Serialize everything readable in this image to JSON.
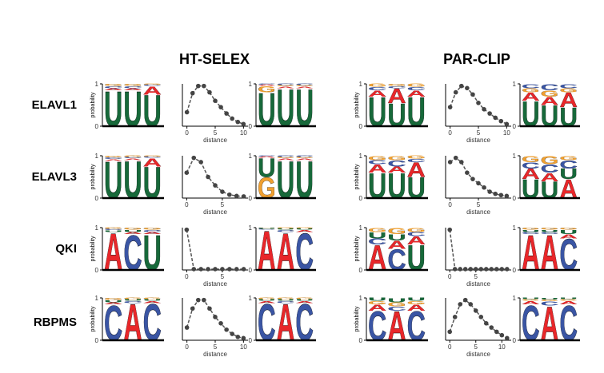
{
  "titles": [
    "HT-SELEX",
    "PAR-CLIP"
  ],
  "row_labels": [
    "ELAVL1",
    "ELAVL3",
    "QKI",
    "RBPMS"
  ],
  "chart_data": [
    {
      "type": "logo",
      "ylabel": "probability",
      "ylim": [
        0,
        1
      ],
      "yticks": [
        0,
        1
      ],
      "series": [
        {
          "name": "U",
          "color": "#17693a",
          "values": [
            0.85,
            0.85,
            0.75
          ]
        },
        {
          "name": "A",
          "color": "#e8272a",
          "values": [
            0.05,
            0.05,
            0.2
          ]
        },
        {
          "name": "C",
          "color": "#3a55a4",
          "values": [
            0.05,
            0.05,
            0.03
          ]
        },
        {
          "name": "G",
          "color": "#f0a030",
          "values": [
            0.05,
            0.05,
            0.02
          ]
        }
      ]
    },
    {
      "type": "line",
      "xlabel": "distance",
      "x": [
        0,
        1,
        2,
        3,
        4,
        5,
        6,
        7,
        8,
        9,
        10
      ],
      "values": [
        0.33,
        0.78,
        0.95,
        0.95,
        0.8,
        0.6,
        0.45,
        0.3,
        0.18,
        0.1,
        0.05
      ],
      "xlim": [
        -0.8,
        10.8
      ],
      "xticks": [
        0,
        5,
        10
      ],
      "ylim": [
        0,
        1
      ]
    },
    {
      "type": "logo",
      "ylim": [
        0,
        1
      ],
      "yticks": [
        0,
        1
      ],
      "series": [
        {
          "name": "U",
          "color": "#17693a",
          "values": [
            0.8,
            0.9,
            0.9
          ]
        },
        {
          "name": "G",
          "color": "#f0a030",
          "values": [
            0.15,
            0.03,
            0.03
          ]
        },
        {
          "name": "A",
          "color": "#e8272a",
          "values": [
            0.03,
            0.04,
            0.04
          ]
        },
        {
          "name": "C",
          "color": "#3a55a4",
          "values": [
            0.02,
            0.03,
            0.03
          ]
        }
      ]
    },
    {
      "type": "logo",
      "ylabel": "probability",
      "ylim": [
        0,
        1
      ],
      "yticks": [
        0,
        1
      ],
      "series": [
        {
          "name": "U",
          "color": "#17693a",
          "values": [
            0.7,
            0.55,
            0.7
          ]
        },
        {
          "name": "A",
          "color": "#e8272a",
          "values": [
            0.15,
            0.35,
            0.15
          ]
        },
        {
          "name": "C",
          "color": "#3a55a4",
          "values": [
            0.08,
            0.05,
            0.08
          ]
        },
        {
          "name": "G",
          "color": "#f0a030",
          "values": [
            0.07,
            0.05,
            0.07
          ]
        }
      ]
    },
    {
      "type": "line",
      "xlabel": "distance",
      "x": [
        0,
        1,
        2,
        3,
        4,
        5,
        6,
        7,
        8,
        9,
        10
      ],
      "values": [
        0.45,
        0.8,
        0.95,
        0.9,
        0.75,
        0.55,
        0.4,
        0.3,
        0.2,
        0.12,
        0.05
      ],
      "xlim": [
        -0.8,
        10.8
      ],
      "xticks": [
        0,
        5,
        10
      ],
      "ylim": [
        0,
        1
      ]
    },
    {
      "type": "logo",
      "ylim": [
        0,
        1
      ],
      "yticks": [
        0,
        1
      ],
      "series": [
        {
          "name": "U",
          "color": "#17693a",
          "values": [
            0.6,
            0.5,
            0.45
          ]
        },
        {
          "name": "A",
          "color": "#e8272a",
          "values": [
            0.2,
            0.2,
            0.35
          ]
        },
        {
          "name": "G",
          "color": "#f0a030",
          "values": [
            0.1,
            0.15,
            0.1
          ]
        },
        {
          "name": "C",
          "color": "#3a55a4",
          "values": [
            0.1,
            0.15,
            0.1
          ]
        }
      ]
    },
    {
      "type": "logo",
      "ylabel": "probability",
      "ylim": [
        0,
        1
      ],
      "yticks": [
        0,
        1
      ],
      "series": [
        {
          "name": "U",
          "color": "#17693a",
          "values": [
            0.88,
            0.9,
            0.75
          ]
        },
        {
          "name": "A",
          "color": "#e8272a",
          "values": [
            0.04,
            0.04,
            0.2
          ]
        },
        {
          "name": "C",
          "color": "#3a55a4",
          "values": [
            0.04,
            0.03,
            0.03
          ]
        },
        {
          "name": "G",
          "color": "#f0a030",
          "values": [
            0.04,
            0.03,
            0.02
          ]
        }
      ]
    },
    {
      "type": "line",
      "xlabel": "distance",
      "x": [
        0,
        1,
        2,
        3,
        4,
        5,
        6,
        7,
        8
      ],
      "values": [
        0.6,
        0.95,
        0.85,
        0.5,
        0.3,
        0.15,
        0.08,
        0.05,
        0.04
      ],
      "xlim": [
        -0.6,
        8.6
      ],
      "xticks": [
        0,
        5
      ],
      "ylim": [
        0,
        1
      ]
    },
    {
      "type": "logo",
      "ylim": [
        0,
        1
      ],
      "yticks": [
        0,
        1
      ],
      "series": [
        {
          "name": "G",
          "color": "#f0a030",
          "values": [
            0.5,
            0.03,
            0.03
          ]
        },
        {
          "name": "U",
          "color": "#17693a",
          "values": [
            0.45,
            0.9,
            0.9
          ]
        },
        {
          "name": "A",
          "color": "#e8272a",
          "values": [
            0.03,
            0.04,
            0.04
          ]
        },
        {
          "name": "C",
          "color": "#3a55a4",
          "values": [
            0.02,
            0.03,
            0.03
          ]
        }
      ]
    },
    {
      "type": "logo",
      "ylabel": "probability",
      "ylim": [
        0,
        1
      ],
      "yticks": [
        0,
        1
      ],
      "series": [
        {
          "name": "U",
          "color": "#17693a",
          "values": [
            0.6,
            0.6,
            0.5
          ]
        },
        {
          "name": "A",
          "color": "#e8272a",
          "values": [
            0.2,
            0.15,
            0.35
          ]
        },
        {
          "name": "C",
          "color": "#3a55a4",
          "values": [
            0.1,
            0.15,
            0.08
          ]
        },
        {
          "name": "G",
          "color": "#f0a030",
          "values": [
            0.1,
            0.1,
            0.07
          ]
        }
      ]
    },
    {
      "type": "line",
      "xlabel": "distance",
      "x": [
        0,
        1,
        2,
        3,
        4,
        5,
        6,
        7,
        8,
        9,
        10
      ],
      "values": [
        0.85,
        0.95,
        0.85,
        0.6,
        0.45,
        0.35,
        0.25,
        0.15,
        0.1,
        0.07,
        0.05
      ],
      "xlim": [
        -0.8,
        10.8
      ],
      "xticks": [
        0,
        5
      ],
      "ylim": [
        0,
        1
      ]
    },
    {
      "type": "logo",
      "ylim": [
        0,
        1
      ],
      "yticks": [
        0,
        1
      ],
      "series": [
        {
          "name": "U",
          "color": "#17693a",
          "values": [
            0.45,
            0.4,
            0.25
          ]
        },
        {
          "name": "A",
          "color": "#e8272a",
          "values": [
            0.25,
            0.2,
            0.45
          ]
        },
        {
          "name": "C",
          "color": "#3a55a4",
          "values": [
            0.15,
            0.2,
            0.2
          ]
        },
        {
          "name": "G",
          "color": "#f0a030",
          "values": [
            0.15,
            0.2,
            0.1
          ]
        }
      ]
    },
    {
      "type": "logo",
      "ylabel": "probability",
      "ylim": [
        0,
        1
      ],
      "yticks": [
        0,
        1
      ],
      "series": [
        {
          "name": "A",
          "color": "#e8272a",
          "values": [
            0.9,
            0.05,
            0.05
          ]
        },
        {
          "name": "C",
          "color": "#3a55a4",
          "values": [
            0.03,
            0.85,
            0.05
          ]
        },
        {
          "name": "U",
          "color": "#17693a",
          "values": [
            0.04,
            0.05,
            0.85
          ]
        },
        {
          "name": "G",
          "color": "#f0a030",
          "values": [
            0.03,
            0.05,
            0.05
          ]
        }
      ]
    },
    {
      "type": "line",
      "xlabel": "distance",
      "x": [
        0,
        1,
        2,
        3,
        4,
        5,
        6,
        7,
        8
      ],
      "values": [
        0.95,
        0.02,
        0.02,
        0.02,
        0.02,
        0.02,
        0.02,
        0.02,
        0.02
      ],
      "xlim": [
        -0.6,
        8.6
      ],
      "xticks": [
        0,
        5
      ],
      "ylim": [
        0,
        1
      ]
    },
    {
      "type": "logo",
      "ylim": [
        0,
        1
      ],
      "yticks": [
        0,
        1
      ],
      "series": [
        {
          "name": "A",
          "color": "#e8272a",
          "values": [
            0.95,
            0.9,
            0.05
          ]
        },
        {
          "name": "C",
          "color": "#3a55a4",
          "values": [
            0.02,
            0.05,
            0.9
          ]
        },
        {
          "name": "U",
          "color": "#17693a",
          "values": [
            0.02,
            0.03,
            0.03
          ]
        },
        {
          "name": "G",
          "color": "#f0a030",
          "values": [
            0.01,
            0.02,
            0.02
          ]
        }
      ]
    },
    {
      "type": "logo",
      "ylabel": "probability",
      "ylim": [
        0,
        1
      ],
      "yticks": [
        0,
        1
      ],
      "series": [
        {
          "name": "A",
          "color": "#e8272a",
          "values": [
            0.6,
            0.2,
            0.2
          ]
        },
        {
          "name": "C",
          "color": "#3a55a4",
          "values": [
            0.15,
            0.5,
            0.1
          ]
        },
        {
          "name": "U",
          "color": "#17693a",
          "values": [
            0.15,
            0.15,
            0.6
          ]
        },
        {
          "name": "G",
          "color": "#f0a030",
          "values": [
            0.1,
            0.15,
            0.1
          ]
        }
      ]
    },
    {
      "type": "line",
      "xlabel": "distance",
      "x": [
        0,
        1,
        2,
        3,
        4,
        5,
        6,
        7,
        8,
        9,
        10,
        11
      ],
      "values": [
        0.95,
        0.02,
        0.02,
        0.02,
        0.02,
        0.02,
        0.02,
        0.02,
        0.02,
        0.02,
        0.02,
        0.02
      ],
      "xlim": [
        -0.8,
        11.8
      ],
      "xticks": [
        0,
        5
      ],
      "ylim": [
        0,
        1
      ]
    },
    {
      "type": "logo",
      "ylim": [
        0,
        1
      ],
      "yticks": [
        0,
        1
      ],
      "series": [
        {
          "name": "A",
          "color": "#e8272a",
          "values": [
            0.85,
            0.85,
            0.1
          ]
        },
        {
          "name": "C",
          "color": "#3a55a4",
          "values": [
            0.05,
            0.05,
            0.75
          ]
        },
        {
          "name": "U",
          "color": "#17693a",
          "values": [
            0.05,
            0.05,
            0.1
          ]
        },
        {
          "name": "G",
          "color": "#f0a030",
          "values": [
            0.05,
            0.05,
            0.05
          ]
        }
      ]
    },
    {
      "type": "logo",
      "ylabel": "probability",
      "ylim": [
        0,
        1
      ],
      "yticks": [
        0,
        1
      ],
      "series": [
        {
          "name": "C",
          "color": "#3a55a4",
          "values": [
            0.85,
            0.05,
            0.88
          ]
        },
        {
          "name": "A",
          "color": "#e8272a",
          "values": [
            0.05,
            0.88,
            0.05
          ]
        },
        {
          "name": "U",
          "color": "#17693a",
          "values": [
            0.05,
            0.04,
            0.04
          ]
        },
        {
          "name": "G",
          "color": "#f0a030",
          "values": [
            0.05,
            0.03,
            0.03
          ]
        }
      ]
    },
    {
      "type": "line",
      "xlabel": "distance",
      "x": [
        0,
        1,
        2,
        3,
        4,
        5,
        6,
        7,
        8,
        9,
        10
      ],
      "values": [
        0.3,
        0.75,
        0.95,
        0.95,
        0.75,
        0.55,
        0.4,
        0.25,
        0.15,
        0.08,
        0.05
      ],
      "xlim": [
        -0.8,
        10.8
      ],
      "xticks": [
        0,
        5,
        10
      ],
      "ylim": [
        0,
        1
      ]
    },
    {
      "type": "logo",
      "ylim": [
        0,
        1
      ],
      "yticks": [
        0,
        1
      ],
      "series": [
        {
          "name": "C",
          "color": "#3a55a4",
          "values": [
            0.88,
            0.05,
            0.88
          ]
        },
        {
          "name": "A",
          "color": "#e8272a",
          "values": [
            0.05,
            0.88,
            0.05
          ]
        },
        {
          "name": "U",
          "color": "#17693a",
          "values": [
            0.04,
            0.04,
            0.04
          ]
        },
        {
          "name": "G",
          "color": "#f0a030",
          "values": [
            0.03,
            0.03,
            0.03
          ]
        }
      ]
    },
    {
      "type": "logo",
      "ylabel": "probability",
      "ylim": [
        0,
        1
      ],
      "yticks": [
        0,
        1
      ],
      "series": [
        {
          "name": "C",
          "color": "#3a55a4",
          "values": [
            0.7,
            0.1,
            0.7
          ]
        },
        {
          "name": "A",
          "color": "#e8272a",
          "values": [
            0.15,
            0.7,
            0.15
          ]
        },
        {
          "name": "G",
          "color": "#f0a030",
          "values": [
            0.08,
            0.1,
            0.08
          ]
        },
        {
          "name": "U",
          "color": "#17693a",
          "values": [
            0.07,
            0.1,
            0.07
          ]
        }
      ]
    },
    {
      "type": "line",
      "xlabel": "distance",
      "x": [
        0,
        1,
        2,
        3,
        4,
        5,
        6,
        7,
        8,
        9,
        10,
        11
      ],
      "values": [
        0.2,
        0.55,
        0.85,
        0.95,
        0.85,
        0.7,
        0.55,
        0.4,
        0.3,
        0.2,
        0.12,
        0.05
      ],
      "xlim": [
        -0.8,
        11.8
      ],
      "xticks": [
        0,
        5,
        10
      ],
      "ylim": [
        0,
        1
      ]
    },
    {
      "type": "logo",
      "ylim": [
        0,
        1
      ],
      "yticks": [
        0,
        1
      ],
      "series": [
        {
          "name": "C",
          "color": "#3a55a4",
          "values": [
            0.85,
            0.1,
            0.85
          ]
        },
        {
          "name": "A",
          "color": "#e8272a",
          "values": [
            0.08,
            0.82,
            0.08
          ]
        },
        {
          "name": "G",
          "color": "#f0a030",
          "values": [
            0.04,
            0.04,
            0.04
          ]
        },
        {
          "name": "U",
          "color": "#17693a",
          "values": [
            0.03,
            0.04,
            0.03
          ]
        }
      ]
    }
  ]
}
